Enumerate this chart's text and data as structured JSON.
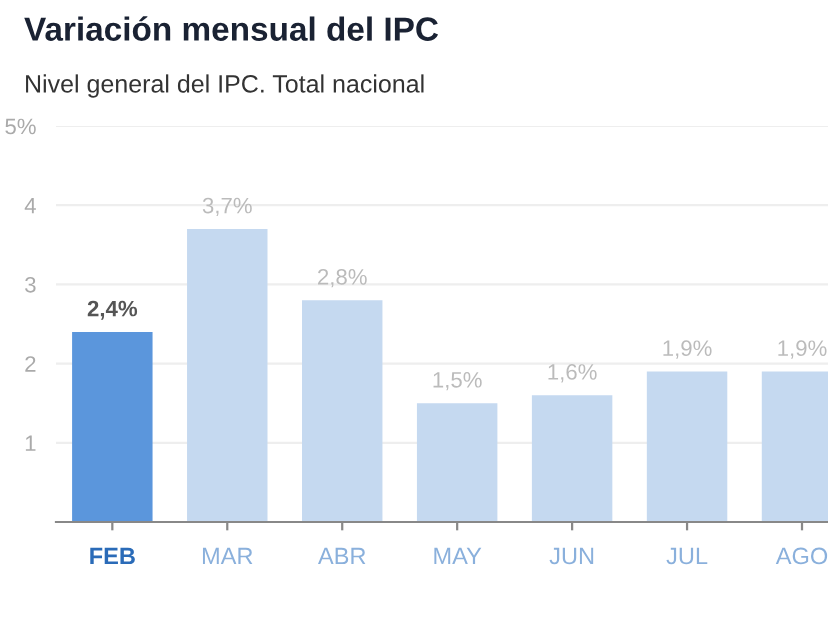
{
  "chart_data": {
    "type": "bar",
    "title": "Variación mensual del IPC",
    "subtitle": "Nivel general del IPC. Total nacional",
    "categories": [
      "FEB",
      "MAR",
      "ABR",
      "MAY",
      "JUN",
      "JUL",
      "AGO"
    ],
    "values": [
      2.4,
      3.7,
      2.8,
      1.5,
      1.6,
      1.9,
      1.9
    ],
    "value_labels": [
      "2,4%",
      "3,7%",
      "2,8%",
      "1,5%",
      "1,6%",
      "1,9%",
      "1,9%"
    ],
    "colors": [
      "#5b96dc",
      "#c5d9f0",
      "#c5d9f0",
      "#c5d9f0",
      "#c5d9f0",
      "#c5d9f0",
      "#c5d9f0"
    ],
    "ylim": [
      0,
      5
    ],
    "yticks": [
      1,
      2,
      3,
      4,
      {
        "value": 5,
        "label": "5%"
      }
    ],
    "grid": "y"
  }
}
